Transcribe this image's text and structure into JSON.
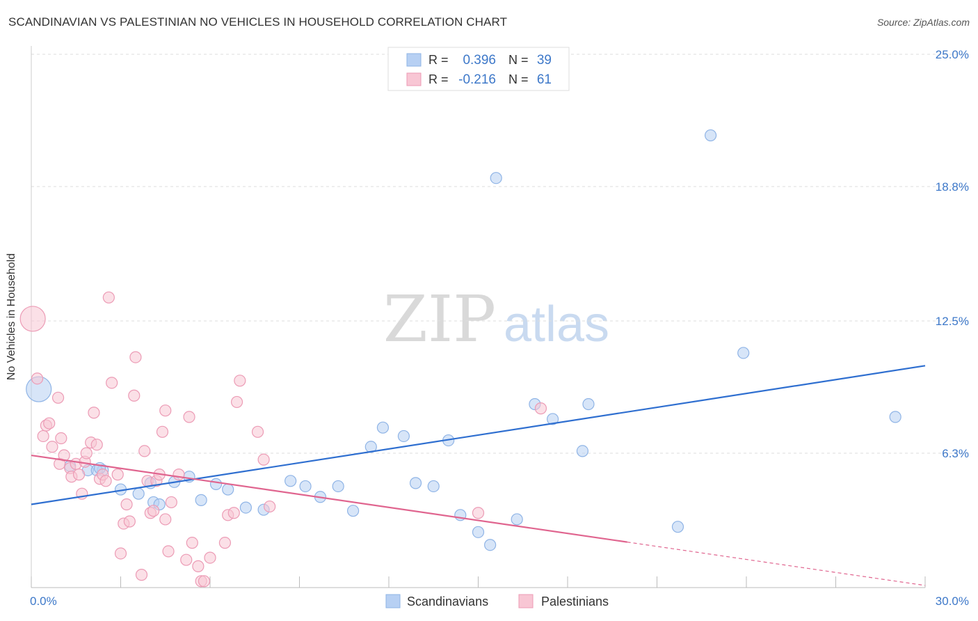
{
  "header": {
    "title": "SCANDINAVIAN VS PALESTINIAN NO VEHICLES IN HOUSEHOLD CORRELATION CHART",
    "source": "Source: ZipAtlas.com"
  },
  "watermark": {
    "zip": "ZIP",
    "atlas": "atlas"
  },
  "colors": {
    "blue_fill": "#b7d0f3",
    "blue_stroke": "#8fb4e6",
    "blue_line": "#2f6fd0",
    "pink_fill": "#f8c6d4",
    "pink_stroke": "#ec9bb5",
    "pink_line": "#e0658f",
    "tick_text": "#3d78c9",
    "grid": "#dddddd"
  },
  "chart_data": {
    "type": "scatter",
    "title": "SCANDINAVIAN VS PALESTINIAN NO VEHICLES IN HOUSEHOLD CORRELATION CHART",
    "xlabel": "",
    "ylabel": "No Vehicles in Household",
    "xlim": [
      0,
      30
    ],
    "ylim": [
      0,
      25
    ],
    "x_tick_labels": [
      "0.0%",
      "30.0%"
    ],
    "y_ticks": [
      6.3,
      12.5,
      18.8,
      25.0
    ],
    "y_tick_labels": [
      "6.3%",
      "12.5%",
      "18.8%",
      "25.0%"
    ],
    "grid": true,
    "legend_position": "top-center",
    "stats": [
      {
        "r_label": "R =",
        "r_value": "0.396",
        "n_label": "N =",
        "n_value": "39"
      },
      {
        "r_label": "R =",
        "r_value": "-0.216",
        "n_label": "N =",
        "n_value": "61"
      }
    ],
    "series": [
      {
        "name": "Scandinavians",
        "color": "#b7d0f3",
        "trend": {
          "x0": 0,
          "y0": 3.9,
          "x1": 30,
          "y1": 10.4,
          "solid_until": 30
        },
        "points": [
          {
            "x": 0.25,
            "y": 9.3,
            "big": true
          },
          {
            "x": 1.3,
            "y": 5.7
          },
          {
            "x": 1.9,
            "y": 5.5
          },
          {
            "x": 2.4,
            "y": 5.5
          },
          {
            "x": 2.2,
            "y": 5.5
          },
          {
            "x": 2.3,
            "y": 5.6
          },
          {
            "x": 3.0,
            "y": 4.6
          },
          {
            "x": 3.6,
            "y": 4.4
          },
          {
            "x": 4.0,
            "y": 4.9
          },
          {
            "x": 4.1,
            "y": 4.0
          },
          {
            "x": 4.3,
            "y": 3.9
          },
          {
            "x": 4.8,
            "y": 4.95
          },
          {
            "x": 5.3,
            "y": 5.2
          },
          {
            "x": 5.7,
            "y": 4.1
          },
          {
            "x": 6.2,
            "y": 4.85
          },
          {
            "x": 6.6,
            "y": 4.6
          },
          {
            "x": 7.2,
            "y": 3.75
          },
          {
            "x": 7.8,
            "y": 3.65
          },
          {
            "x": 8.7,
            "y": 5.0
          },
          {
            "x": 9.2,
            "y": 4.75
          },
          {
            "x": 9.7,
            "y": 4.25
          },
          {
            "x": 10.3,
            "y": 4.75
          },
          {
            "x": 10.8,
            "y": 3.6
          },
          {
            "x": 11.4,
            "y": 6.6
          },
          {
            "x": 11.8,
            "y": 7.5
          },
          {
            "x": 12.9,
            "y": 4.9
          },
          {
            "x": 12.5,
            "y": 7.1
          },
          {
            "x": 13.5,
            "y": 4.75
          },
          {
            "x": 14.0,
            "y": 6.9
          },
          {
            "x": 14.4,
            "y": 3.4
          },
          {
            "x": 15.0,
            "y": 2.6
          },
          {
            "x": 15.4,
            "y": 2.0
          },
          {
            "x": 15.6,
            "y": 19.2
          },
          {
            "x": 16.3,
            "y": 3.2
          },
          {
            "x": 16.9,
            "y": 8.6
          },
          {
            "x": 17.5,
            "y": 7.9
          },
          {
            "x": 18.5,
            "y": 6.4
          },
          {
            "x": 18.7,
            "y": 8.6
          },
          {
            "x": 21.7,
            "y": 2.85
          },
          {
            "x": 22.8,
            "y": 21.2
          },
          {
            "x": 23.9,
            "y": 11.0
          },
          {
            "x": 29.0,
            "y": 8.0
          }
        ]
      },
      {
        "name": "Palestinians",
        "color": "#f8c6d4",
        "trend": {
          "x0": 0,
          "y0": 6.2,
          "x1": 30,
          "y1": 0.1,
          "solid_until": 20
        },
        "points": [
          {
            "x": 0.05,
            "y": 12.6,
            "big": true
          },
          {
            "x": 0.2,
            "y": 9.8
          },
          {
            "x": 0.4,
            "y": 7.1
          },
          {
            "x": 0.5,
            "y": 7.6
          },
          {
            "x": 0.6,
            "y": 7.7
          },
          {
            "x": 0.7,
            "y": 6.6
          },
          {
            "x": 0.9,
            "y": 8.9
          },
          {
            "x": 0.95,
            "y": 5.8
          },
          {
            "x": 1.0,
            "y": 7.0
          },
          {
            "x": 1.1,
            "y": 6.2
          },
          {
            "x": 1.3,
            "y": 5.6
          },
          {
            "x": 1.35,
            "y": 5.2
          },
          {
            "x": 1.5,
            "y": 5.8
          },
          {
            "x": 1.6,
            "y": 5.3
          },
          {
            "x": 1.7,
            "y": 4.4
          },
          {
            "x": 1.8,
            "y": 5.9
          },
          {
            "x": 1.85,
            "y": 6.3
          },
          {
            "x": 2.0,
            "y": 6.8
          },
          {
            "x": 2.1,
            "y": 8.2
          },
          {
            "x": 2.2,
            "y": 6.7
          },
          {
            "x": 2.3,
            "y": 5.1
          },
          {
            "x": 2.4,
            "y": 5.3
          },
          {
            "x": 2.5,
            "y": 5.0
          },
          {
            "x": 2.7,
            "y": 9.6
          },
          {
            "x": 2.6,
            "y": 13.6
          },
          {
            "x": 2.9,
            "y": 5.3
          },
          {
            "x": 3.0,
            "y": 1.6
          },
          {
            "x": 3.1,
            "y": 3.0
          },
          {
            "x": 3.2,
            "y": 3.9
          },
          {
            "x": 3.3,
            "y": 3.1
          },
          {
            "x": 3.45,
            "y": 9.0
          },
          {
            "x": 3.5,
            "y": 10.8
          },
          {
            "x": 3.7,
            "y": 0.6
          },
          {
            "x": 3.8,
            "y": 6.4
          },
          {
            "x": 3.9,
            "y": 5.0
          },
          {
            "x": 4.0,
            "y": 3.5
          },
          {
            "x": 4.1,
            "y": 3.6
          },
          {
            "x": 4.2,
            "y": 5.0
          },
          {
            "x": 4.3,
            "y": 5.3
          },
          {
            "x": 4.4,
            "y": 7.3
          },
          {
            "x": 4.5,
            "y": 3.2
          },
          {
            "x": 4.5,
            "y": 8.3
          },
          {
            "x": 4.6,
            "y": 1.7
          },
          {
            "x": 4.7,
            "y": 4.0
          },
          {
            "x": 4.95,
            "y": 5.3
          },
          {
            "x": 5.2,
            "y": 1.3
          },
          {
            "x": 5.3,
            "y": 8.0
          },
          {
            "x": 5.4,
            "y": 2.1
          },
          {
            "x": 5.6,
            "y": 1.0
          },
          {
            "x": 5.7,
            "y": 0.3
          },
          {
            "x": 5.8,
            "y": 0.3
          },
          {
            "x": 6.0,
            "y": 1.4
          },
          {
            "x": 6.5,
            "y": 2.1
          },
          {
            "x": 6.6,
            "y": 3.4
          },
          {
            "x": 6.8,
            "y": 3.5
          },
          {
            "x": 6.9,
            "y": 8.7
          },
          {
            "x": 7.0,
            "y": 9.7
          },
          {
            "x": 7.6,
            "y": 7.3
          },
          {
            "x": 7.8,
            "y": 6.0
          },
          {
            "x": 8.0,
            "y": 3.8
          },
          {
            "x": 15.0,
            "y": 3.5
          },
          {
            "x": 17.1,
            "y": 8.4
          }
        ]
      }
    ]
  },
  "legend": {
    "items": [
      "Scandinavians",
      "Palestinians"
    ]
  }
}
